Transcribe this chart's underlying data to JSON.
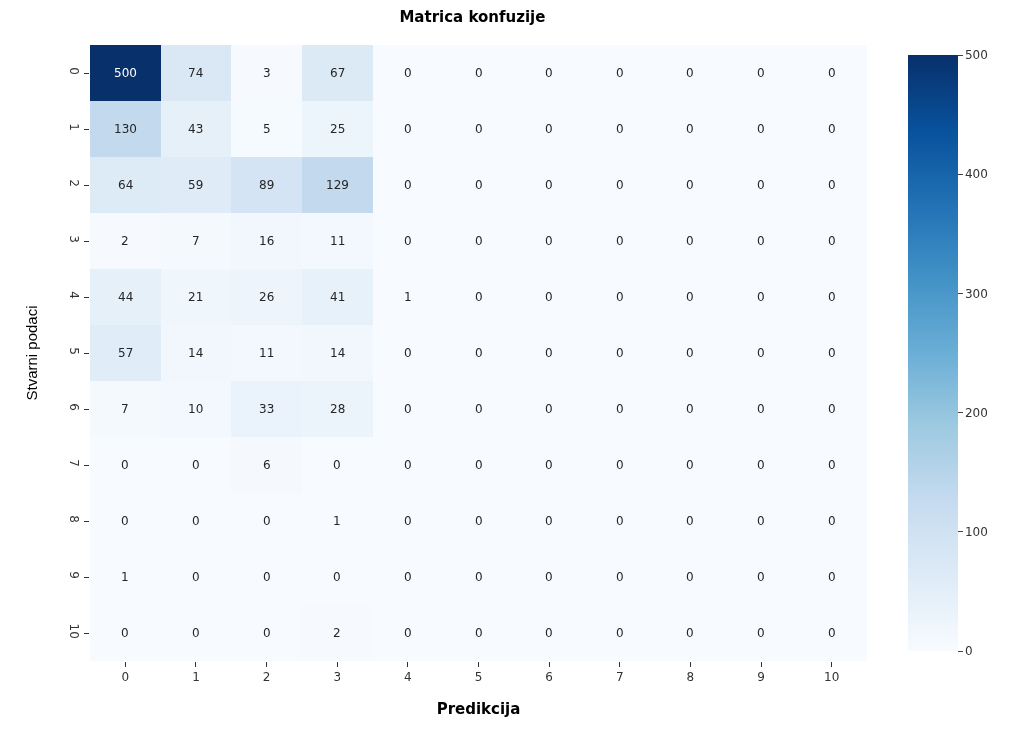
{
  "chart_data": {
    "type": "heatmap",
    "title": "Matrica konfuzije",
    "xlabel": "Predikcija",
    "ylabel": "Stvarni podaci",
    "categories": [
      "0",
      "1",
      "2",
      "3",
      "4",
      "5",
      "6",
      "7",
      "8",
      "9",
      "10"
    ],
    "y_categories": [
      "0",
      "1",
      "2",
      "3",
      "4",
      "5",
      "6",
      "7",
      "8",
      "9",
      "10"
    ],
    "cells": [
      [
        500,
        74,
        3,
        67,
        0,
        0,
        0,
        0,
        0,
        0,
        0
      ],
      [
        130,
        43,
        5,
        25,
        0,
        0,
        0,
        0,
        0,
        0,
        0
      ],
      [
        64,
        59,
        89,
        129,
        0,
        0,
        0,
        0,
        0,
        0,
        0
      ],
      [
        2,
        7,
        16,
        11,
        0,
        0,
        0,
        0,
        0,
        0,
        0
      ],
      [
        44,
        21,
        26,
        41,
        1,
        0,
        0,
        0,
        0,
        0,
        0
      ],
      [
        57,
        14,
        11,
        14,
        0,
        0,
        0,
        0,
        0,
        0,
        0
      ],
      [
        7,
        10,
        33,
        28,
        0,
        0,
        0,
        0,
        0,
        0,
        0
      ],
      [
        0,
        0,
        6,
        0,
        0,
        0,
        0,
        0,
        0,
        0,
        0
      ],
      [
        0,
        0,
        0,
        1,
        0,
        0,
        0,
        0,
        0,
        0,
        0
      ],
      [
        1,
        0,
        0,
        0,
        0,
        0,
        0,
        0,
        0,
        0,
        0
      ],
      [
        0,
        0,
        0,
        2,
        0,
        0,
        0,
        0,
        0,
        0,
        0
      ]
    ],
    "clim": [
      0,
      500
    ],
    "cticks": [
      0,
      100,
      200,
      300,
      400,
      500
    ],
    "data_labels": true
  }
}
